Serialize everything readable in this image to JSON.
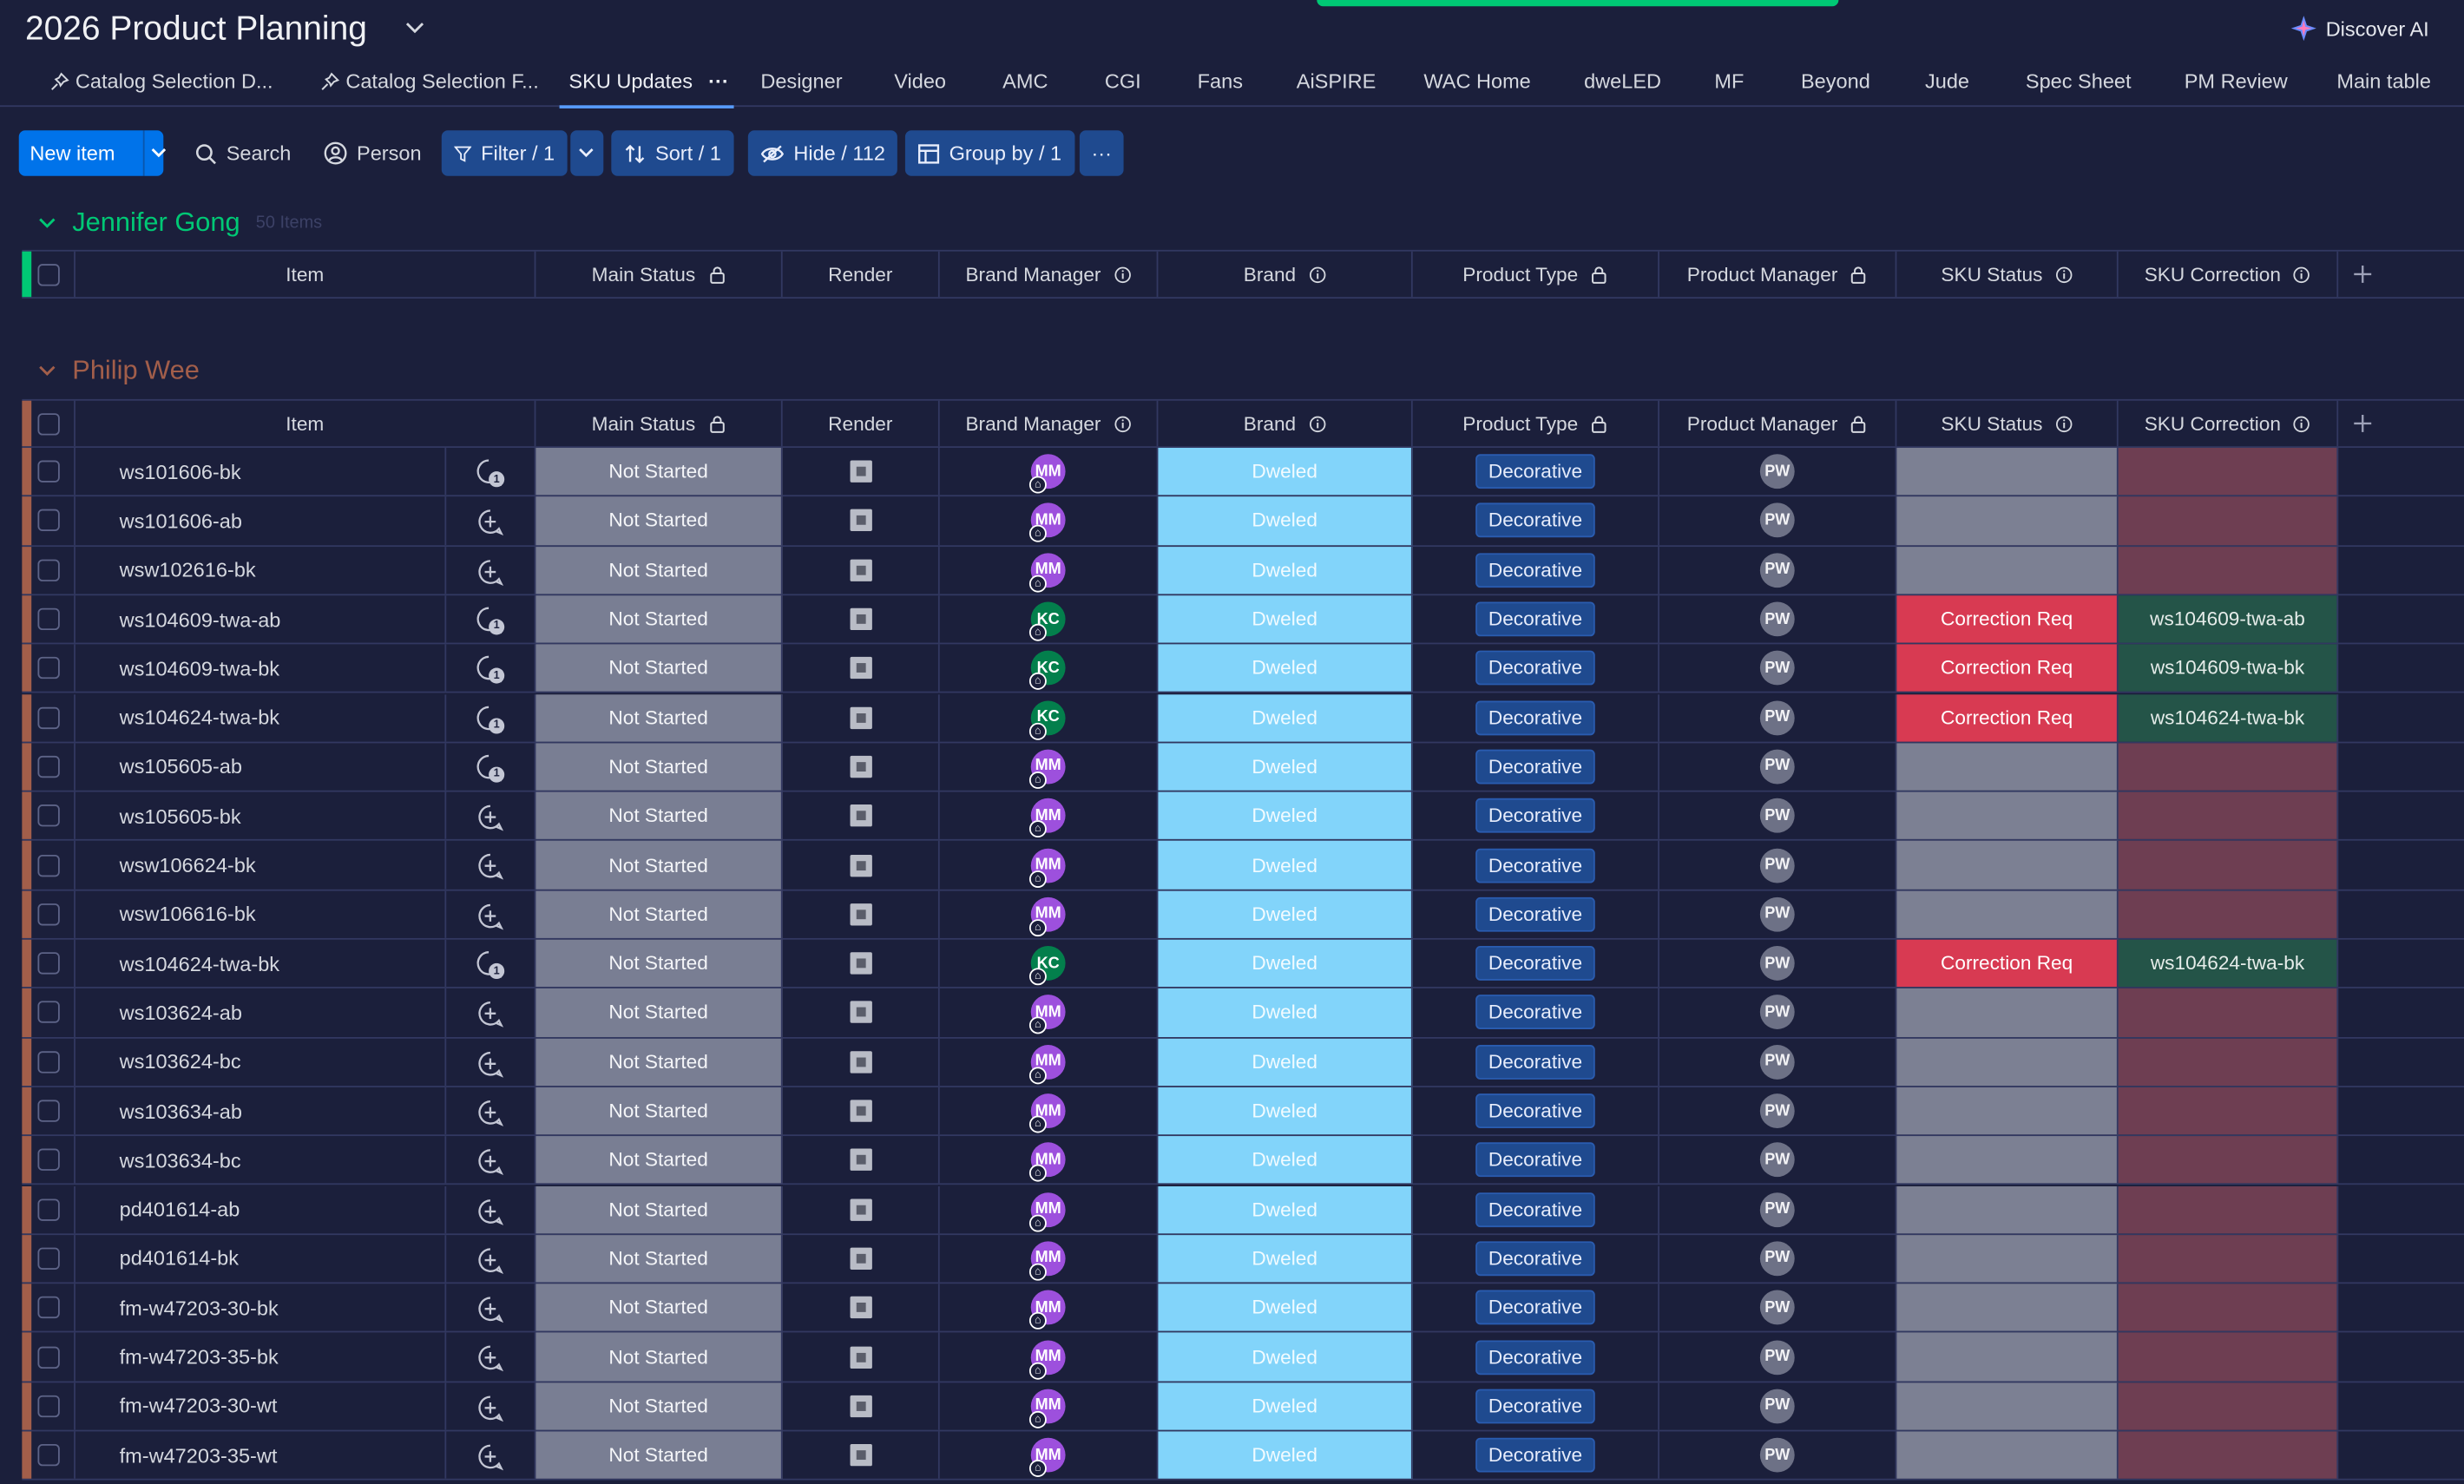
{
  "board": {
    "title": "2026 Product Planning"
  },
  "discover": {
    "label": "Discover AI"
  },
  "tabs": [
    {
      "label": "Catalog Selection D...",
      "pinned": true
    },
    {
      "label": "Catalog Selection F...",
      "pinned": true
    },
    {
      "label": "SKU Updates",
      "active": true
    },
    {
      "label": "Designer"
    },
    {
      "label": "Video"
    },
    {
      "label": "AMC"
    },
    {
      "label": "CGI"
    },
    {
      "label": "Fans"
    },
    {
      "label": "AiSPIRE"
    },
    {
      "label": "WAC Home"
    },
    {
      "label": "dweLED"
    },
    {
      "label": "MF"
    },
    {
      "label": "Beyond"
    },
    {
      "label": "Jude"
    },
    {
      "label": "Spec Sheet"
    },
    {
      "label": "PM Review"
    },
    {
      "label": "Main table"
    }
  ],
  "toolbar": {
    "new_item": "New item",
    "search": "Search",
    "person": "Person",
    "filter": "Filter / 1",
    "sort": "Sort / 1",
    "hide": "Hide / 112",
    "group_by": "Group by / 1",
    "more": "···"
  },
  "columns": [
    "Item",
    "Main Status",
    "Render",
    "Brand Manager",
    "Brand",
    "Product Type",
    "Product Manager",
    "SKU Status",
    "SKU Correction"
  ],
  "groups": [
    {
      "name": "Jennifer Gong",
      "count": "50 Items",
      "color": "#00c875"
    },
    {
      "name": "Philip Wee",
      "count": "",
      "color": "#a25e4a"
    }
  ],
  "rows": [
    {
      "item": "ws101606-bk",
      "has_updates": true,
      "main_status": "Not Started",
      "bm": "MM",
      "brand": "Dweled",
      "type": "Decorative",
      "pm": "PW",
      "sku_status": "",
      "correction": ""
    },
    {
      "item": "ws101606-ab",
      "has_updates": false,
      "main_status": "Not Started",
      "bm": "MM",
      "brand": "Dweled",
      "type": "Decorative",
      "pm": "PW",
      "sku_status": "",
      "correction": ""
    },
    {
      "item": "wsw102616-bk",
      "has_updates": false,
      "main_status": "Not Started",
      "bm": "MM",
      "brand": "Dweled",
      "type": "Decorative",
      "pm": "PW",
      "sku_status": "",
      "correction": ""
    },
    {
      "item": "ws104609-twa-ab",
      "has_updates": true,
      "main_status": "Not Started",
      "bm": "KC",
      "brand": "Dweled",
      "type": "Decorative",
      "pm": "PW",
      "sku_status": "Correction Req",
      "correction": "ws104609-twa-ab"
    },
    {
      "item": "ws104609-twa-bk",
      "has_updates": true,
      "main_status": "Not Started",
      "bm": "KC",
      "brand": "Dweled",
      "type": "Decorative",
      "pm": "PW",
      "sku_status": "Correction Req",
      "correction": "ws104609-twa-bk"
    },
    {
      "item": "ws104624-twa-bk",
      "has_updates": true,
      "main_status": "Not Started",
      "bm": "KC",
      "brand": "Dweled",
      "type": "Decorative",
      "pm": "PW",
      "sku_status": "Correction Req",
      "correction": "ws104624-twa-bk"
    },
    {
      "item": "ws105605-ab",
      "has_updates": true,
      "main_status": "Not Started",
      "bm": "MM",
      "brand": "Dweled",
      "type": "Decorative",
      "pm": "PW",
      "sku_status": "",
      "correction": ""
    },
    {
      "item": "ws105605-bk",
      "has_updates": false,
      "main_status": "Not Started",
      "bm": "MM",
      "brand": "Dweled",
      "type": "Decorative",
      "pm": "PW",
      "sku_status": "",
      "correction": ""
    },
    {
      "item": "wsw106624-bk",
      "has_updates": false,
      "main_status": "Not Started",
      "bm": "MM",
      "brand": "Dweled",
      "type": "Decorative",
      "pm": "PW",
      "sku_status": "",
      "correction": ""
    },
    {
      "item": "wsw106616-bk",
      "has_updates": false,
      "main_status": "Not Started",
      "bm": "MM",
      "brand": "Dweled",
      "type": "Decorative",
      "pm": "PW",
      "sku_status": "",
      "correction": ""
    },
    {
      "item": "ws104624-twa-bk",
      "has_updates": true,
      "main_status": "Not Started",
      "bm": "KC",
      "brand": "Dweled",
      "type": "Decorative",
      "pm": "PW",
      "sku_status": "Correction Req",
      "correction": "ws104624-twa-bk"
    },
    {
      "item": "ws103624-ab",
      "has_updates": false,
      "main_status": "Not Started",
      "bm": "MM",
      "brand": "Dweled",
      "type": "Decorative",
      "pm": "PW",
      "sku_status": "",
      "correction": ""
    },
    {
      "item": "ws103624-bc",
      "has_updates": false,
      "main_status": "Not Started",
      "bm": "MM",
      "brand": "Dweled",
      "type": "Decorative",
      "pm": "PW",
      "sku_status": "",
      "correction": ""
    },
    {
      "item": "ws103634-ab",
      "has_updates": false,
      "main_status": "Not Started",
      "bm": "MM",
      "brand": "Dweled",
      "type": "Decorative",
      "pm": "PW",
      "sku_status": "",
      "correction": ""
    },
    {
      "item": "ws103634-bc",
      "has_updates": false,
      "main_status": "Not Started",
      "bm": "MM",
      "brand": "Dweled",
      "type": "Decorative",
      "pm": "PW",
      "sku_status": "",
      "correction": ""
    },
    {
      "item": "pd401614-ab",
      "has_updates": false,
      "main_status": "Not Started",
      "bm": "MM",
      "brand": "Dweled",
      "type": "Decorative",
      "pm": "PW",
      "sku_status": "",
      "correction": ""
    },
    {
      "item": "pd401614-bk",
      "has_updates": false,
      "main_status": "Not Started",
      "bm": "MM",
      "brand": "Dweled",
      "type": "Decorative",
      "pm": "PW",
      "sku_status": "",
      "correction": ""
    },
    {
      "item": "fm-w47203-30-bk",
      "has_updates": false,
      "main_status": "Not Started",
      "bm": "MM",
      "brand": "Dweled",
      "type": "Decorative",
      "pm": "PW",
      "sku_status": "",
      "correction": ""
    },
    {
      "item": "fm-w47203-35-bk",
      "has_updates": false,
      "main_status": "Not Started",
      "bm": "MM",
      "brand": "Dweled",
      "type": "Decorative",
      "pm": "PW",
      "sku_status": "",
      "correction": ""
    },
    {
      "item": "fm-w47203-30-wt",
      "has_updates": false,
      "main_status": "Not Started",
      "bm": "MM",
      "brand": "Dweled",
      "type": "Decorative",
      "pm": "PW",
      "sku_status": "",
      "correction": ""
    },
    {
      "item": "fm-w47203-35-wt",
      "has_updates": false,
      "main_status": "Not Started",
      "bm": "MM",
      "brand": "Dweled",
      "type": "Decorative",
      "pm": "PW",
      "sku_status": "",
      "correction": ""
    }
  ],
  "update_badge": "1",
  "avatar_colors": {
    "MM": "#9d50dd",
    "KC": "#037f4c"
  },
  "colors": {
    "accent": "#0073ea",
    "main_status": "#797e93",
    "brand": "#82d4fa",
    "correction_req": "#d83a52",
    "correction_filled": "#245448",
    "correction_empty": "#6e3e52"
  }
}
